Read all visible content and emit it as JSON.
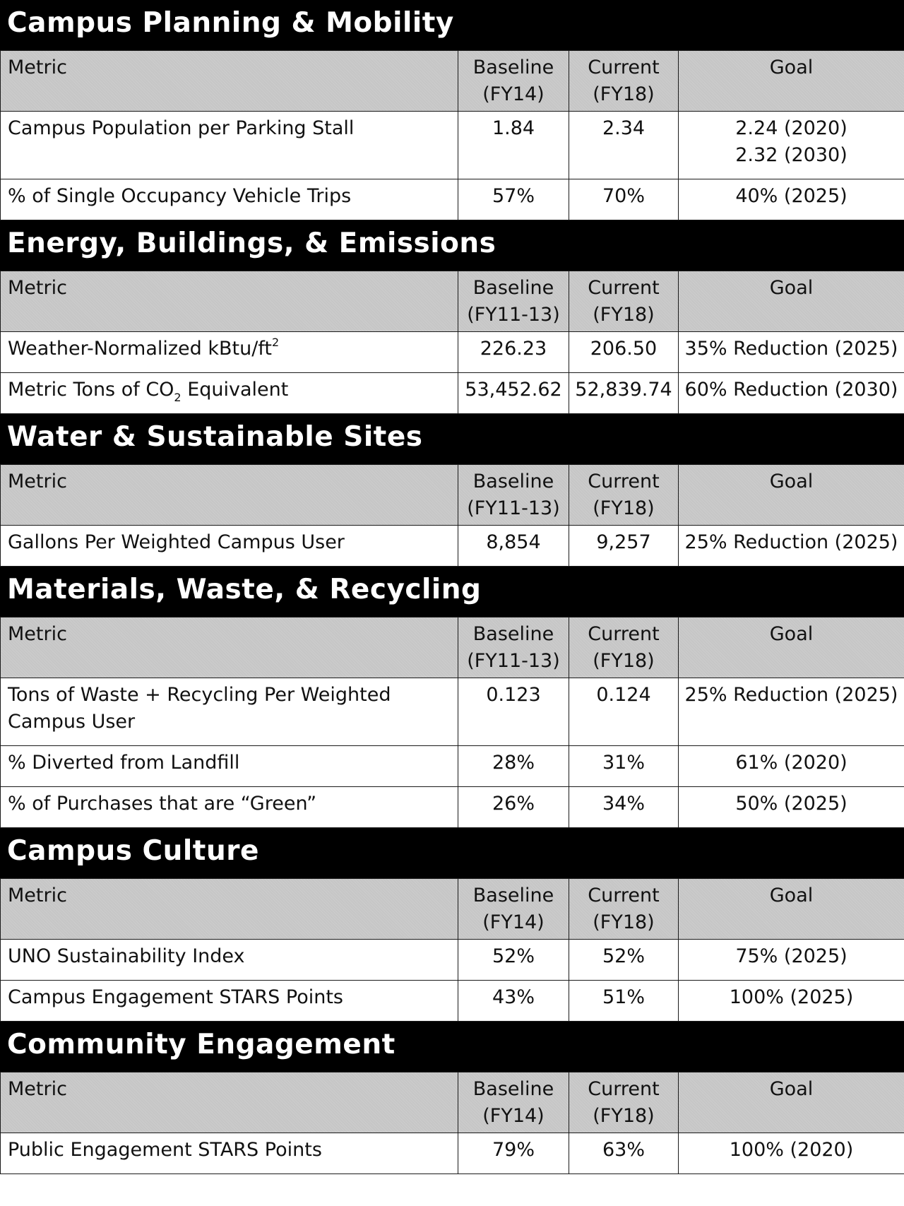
{
  "headers": {
    "metric": "Metric",
    "baseline": "Baseline",
    "current": "Current",
    "current_period": "(FY18)",
    "goal": "Goal"
  },
  "sections": [
    {
      "title": "Campus Planning & Mobility",
      "baseline_period": "(FY14)",
      "rows": [
        {
          "metric": "Campus Population per Parking Stall",
          "baseline": "1.84",
          "current": "2.34",
          "goal": "2.24 (2020)",
          "goal2": "2.32 (2030)"
        },
        {
          "metric": "% of Single Occupancy Vehicle Trips",
          "baseline": "57%",
          "current": "70%",
          "goal": "40% (2025)"
        }
      ]
    },
    {
      "title": "Energy, Buildings, & Emissions",
      "baseline_period": "(FY11-13)",
      "rows": [
        {
          "metric": "Weather-Normalized kBtu/ft",
          "metric_sup": "2",
          "baseline": "226.23",
          "current": "206.50",
          "goal": "35% Reduction (2025)"
        },
        {
          "metric": "Metric Tons of CO",
          "metric_sub": "2",
          "metric_after": " Equivalent",
          "baseline": "53,452.62",
          "current": "52,839.74",
          "goal": "60% Reduction (2030)"
        }
      ]
    },
    {
      "title": "Water & Sustainable Sites",
      "baseline_period": "(FY11-13)",
      "rows": [
        {
          "metric": "Gallons Per Weighted Campus User",
          "baseline": "8,854",
          "current": "9,257",
          "goal": "25% Reduction (2025)"
        }
      ]
    },
    {
      "title": "Materials, Waste, & Recycling",
      "baseline_period": "(FY11-13)",
      "rows": [
        {
          "metric": "Tons of Waste + Recycling Per Weighted",
          "metric2": "Campus User",
          "baseline": "0.123",
          "current": "0.124",
          "goal": "25% Reduction (2025)"
        },
        {
          "metric": "% Diverted from Landfill",
          "baseline": "28%",
          "current": "31%",
          "goal": "61% (2020)"
        },
        {
          "metric": "% of Purchases that are “Green”",
          "baseline": "26%",
          "current": "34%",
          "goal": "50% (2025)"
        }
      ]
    },
    {
      "title": "Campus Culture",
      "baseline_period": "(FY14)",
      "rows": [
        {
          "metric": "UNO Sustainability Index",
          "baseline": "52%",
          "current": "52%",
          "goal": "75% (2025)"
        },
        {
          "metric": "Campus Engagement STARS Points",
          "baseline": "43%",
          "current": "51%",
          "goal": "100% (2025)"
        }
      ]
    },
    {
      "title": "Community Engagement",
      "baseline_period": "(FY14)",
      "rows": [
        {
          "metric": "Public Engagement STARS Points",
          "baseline": "79%",
          "current": "63%",
          "goal": "100% (2020)"
        }
      ]
    }
  ]
}
